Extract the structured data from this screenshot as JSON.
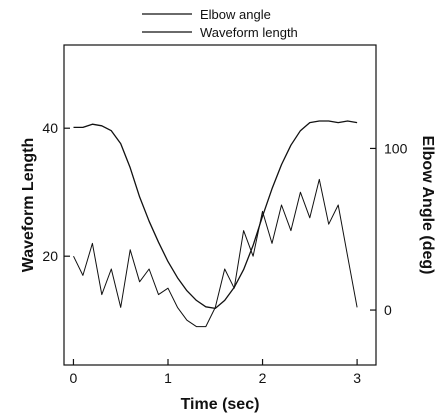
{
  "chart_data": {
    "type": "line",
    "title": "",
    "xlabel": "Time (sec)",
    "ylabel_left": "Waveform Length",
    "ylabel_right": "Elbow Angle (deg)",
    "xlim": [
      -0.1,
      3.2
    ],
    "ylim_left": [
      3,
      53
    ],
    "ylim_right": [
      -34,
      164
    ],
    "x_ticks": [
      0,
      1,
      2,
      3
    ],
    "y_ticks_left": [
      20,
      40
    ],
    "y_ticks_right": [
      0,
      100
    ],
    "grid": false,
    "legend_position": "top-center",
    "line_color": "#111111",
    "series": [
      {
        "name": "Elbow angle",
        "axis": "right",
        "x": [
          0.0,
          0.1,
          0.2,
          0.3,
          0.4,
          0.5,
          0.6,
          0.7,
          0.8,
          0.9,
          1.0,
          1.1,
          1.2,
          1.3,
          1.4,
          1.5,
          1.6,
          1.7,
          1.8,
          1.9,
          2.0,
          2.1,
          2.2,
          2.3,
          2.4,
          2.5,
          2.6,
          2.7,
          2.8,
          2.9,
          3.0
        ],
        "y": [
          113,
          113,
          115,
          114,
          111,
          103,
          88,
          70,
          55,
          42,
          30,
          20,
          12,
          6,
          2,
          1,
          6,
          14,
          25,
          40,
          58,
          75,
          90,
          102,
          111,
          116,
          117,
          117,
          116,
          117,
          116
        ]
      },
      {
        "name": "Waveform length",
        "axis": "left",
        "x": [
          0.0,
          0.1,
          0.2,
          0.3,
          0.4,
          0.5,
          0.6,
          0.7,
          0.8,
          0.9,
          1.0,
          1.1,
          1.2,
          1.3,
          1.4,
          1.5,
          1.6,
          1.7,
          1.8,
          1.9,
          2.0,
          2.1,
          2.2,
          2.3,
          2.4,
          2.5,
          2.6,
          2.7,
          2.8,
          2.9,
          3.0
        ],
        "y": [
          20,
          17,
          22,
          14,
          18,
          12,
          21,
          16,
          18,
          14,
          15,
          12,
          10,
          9,
          9,
          12,
          18,
          15,
          24,
          20,
          27,
          22,
          28,
          24,
          30,
          26,
          32,
          25,
          28,
          20,
          12
        ]
      }
    ]
  }
}
